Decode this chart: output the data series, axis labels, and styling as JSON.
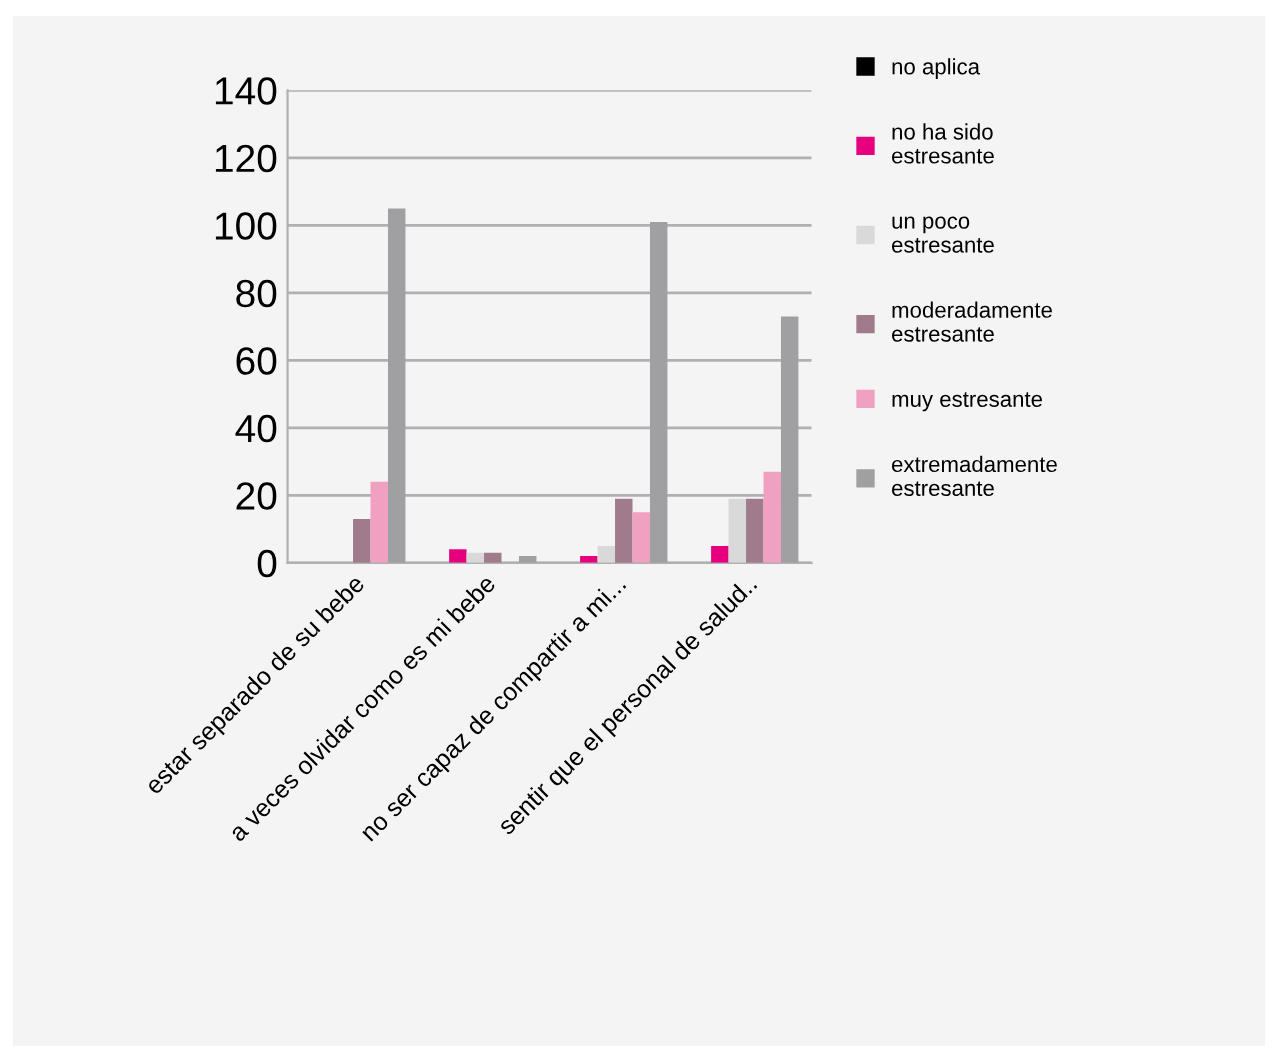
{
  "chart_data": {
    "type": "bar",
    "categories": [
      "estar separado de su bebe",
      "a veces olvidar como es mi bebe",
      "no ser capaz de compartir a mi...",
      "sentir que el personal de salud.."
    ],
    "series": [
      {
        "name": "no aplica",
        "color": "#000000",
        "values": [
          0,
          0,
          0,
          0
        ]
      },
      {
        "name": "no ha sido estresante",
        "color": "#e6007e",
        "values": [
          0,
          4,
          2,
          5
        ]
      },
      {
        "name": "un poco estresante",
        "color": "#d9d9d9",
        "values": [
          0,
          3,
          5,
          19
        ]
      },
      {
        "name": "moderadamente estresante",
        "color": "#a07b8c",
        "values": [
          13,
          3,
          19,
          19
        ]
      },
      {
        "name": "muy estresante",
        "color": "#f0a0c0",
        "values": [
          24,
          0,
          15,
          27
        ]
      },
      {
        "name": "extremadamente estresante",
        "color": "#a0a0a2",
        "values": [
          105,
          2,
          101,
          73
        ]
      }
    ],
    "ylim": [
      0,
      140
    ],
    "yticks": [
      0,
      20,
      40,
      60,
      80,
      100,
      120,
      140
    ],
    "grid": "y",
    "legend": "right"
  }
}
